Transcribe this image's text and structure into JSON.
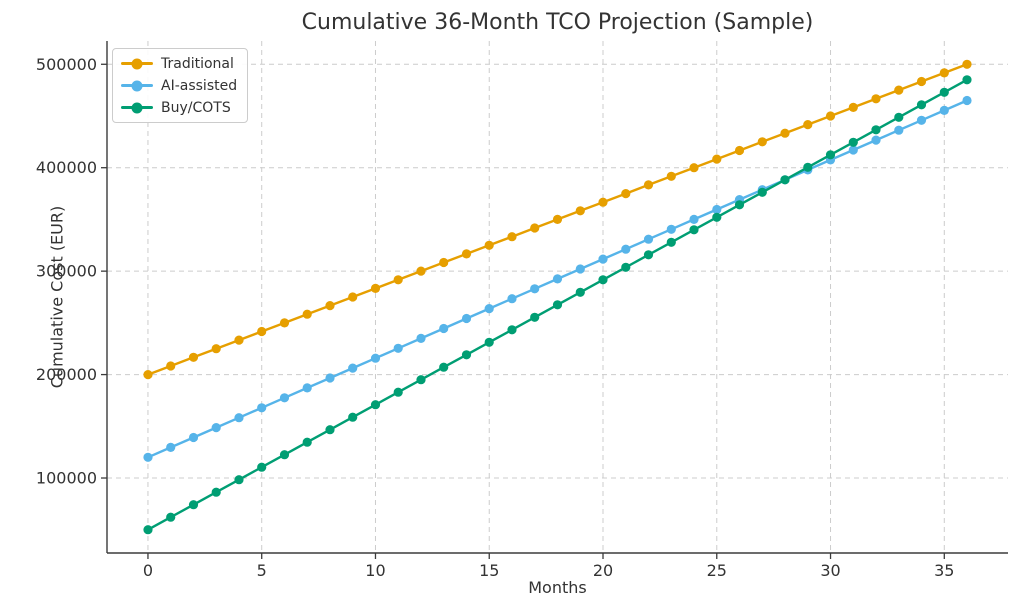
{
  "chart_data": {
    "type": "line",
    "title": "Cumulative 36-Month TCO Projection (Sample)",
    "xlabel": "Months",
    "ylabel": "Cumulative Cost (EUR)",
    "x": [
      0,
      1,
      2,
      3,
      4,
      5,
      6,
      7,
      8,
      9,
      10,
      11,
      12,
      13,
      14,
      15,
      16,
      17,
      18,
      19,
      20,
      21,
      22,
      23,
      24,
      25,
      26,
      27,
      28,
      29,
      30,
      31,
      32,
      33,
      34,
      35,
      36
    ],
    "series": [
      {
        "name": "Traditional",
        "color": "#E69F00",
        "values": [
          200000,
          208333,
          216667,
          225000,
          233333,
          241667,
          250000,
          258333,
          266667,
          275000,
          283333,
          291667,
          300000,
          308333,
          316667,
          325000,
          333333,
          341667,
          350000,
          358333,
          366667,
          375000,
          383333,
          391667,
          400000,
          408333,
          416667,
          425000,
          433333,
          441667,
          450000,
          458333,
          466667,
          475000,
          483333,
          491667,
          500000
        ]
      },
      {
        "name": "AI-assisted",
        "color": "#56B4E9",
        "values": [
          120000,
          129583,
          139167,
          148750,
          158333,
          167917,
          177500,
          187083,
          196667,
          206250,
          215833,
          225417,
          235000,
          244583,
          254167,
          263750,
          273333,
          282917,
          292500,
          302083,
          311667,
          321250,
          330833,
          340417,
          350000,
          359583,
          369167,
          378750,
          388333,
          397917,
          407500,
          417083,
          426667,
          436250,
          445833,
          455417,
          465000
        ]
      },
      {
        "name": "Buy/COTS",
        "color": "#009E73",
        "values": [
          50000,
          62083,
          74167,
          86250,
          98333,
          110417,
          122500,
          134583,
          146667,
          158750,
          170833,
          182917,
          195000,
          207083,
          219167,
          231250,
          243333,
          255417,
          267500,
          279583,
          291667,
          303750,
          315833,
          327917,
          340000,
          352083,
          364167,
          376250,
          388333,
          400417,
          412500,
          424583,
          436667,
          448750,
          460833,
          472917,
          485000
        ]
      }
    ],
    "xlim": [
      -1.8,
      37.8
    ],
    "ylim": [
      27500,
      522500
    ],
    "xticks": [
      0,
      5,
      10,
      15,
      20,
      25,
      30,
      35
    ],
    "yticks": [
      100000,
      200000,
      300000,
      400000,
      500000
    ],
    "grid": true,
    "grid_style": "dashed",
    "grid_color": "#cccccc",
    "spine_color": "#3b3b3b",
    "text_color": "#333333",
    "legend_position": "upper-left",
    "marker": "circle"
  }
}
